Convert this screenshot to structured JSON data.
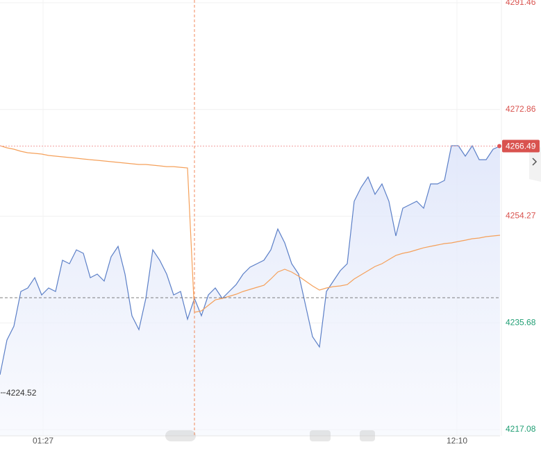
{
  "chart_data": {
    "type": "line",
    "x": [
      0,
      1,
      2,
      3,
      4,
      5,
      6,
      7,
      8,
      9,
      10,
      11,
      12,
      13,
      14,
      15,
      16,
      17,
      18,
      19,
      20,
      21,
      22,
      23,
      24,
      25,
      26,
      27,
      28,
      29,
      30,
      31,
      32,
      33,
      34,
      35,
      36,
      37,
      38,
      39,
      40,
      41,
      42,
      43,
      44,
      45,
      46,
      47,
      48,
      49,
      50,
      51,
      52,
      53,
      54,
      55,
      56,
      57,
      58,
      59,
      60,
      61,
      62,
      63,
      64,
      65,
      66,
      67,
      68,
      69,
      70,
      71,
      72
    ],
    "xlim": [
      0,
      72
    ],
    "xticks": [
      {
        "value": 6.2,
        "label": "01:27"
      },
      {
        "value": 65.8,
        "label": "12:10"
      }
    ],
    "ylim": [
      4217.08,
      4291.46
    ],
    "yticks": [
      4217.08,
      4235.68,
      4254.27,
      4272.86,
      4291.46
    ],
    "grid": true,
    "ref_line": 4240.06,
    "cursor_x": 28,
    "annotation": "4224.52",
    "series": [
      {
        "color": "#5b7fc7",
        "area": true,
        "values": [
          4226.63,
          4232.68,
          4235.1,
          4241.15,
          4241.75,
          4243.56,
          4240.54,
          4241.75,
          4241.15,
          4246.59,
          4245.98,
          4248.4,
          4247.8,
          4243.56,
          4244.17,
          4242.96,
          4247.19,
          4249.01,
          4244.17,
          4236.91,
          4234.49,
          4239.94,
          4248.4,
          4246.59,
          4244.17,
          4240.54,
          4241.15,
          4236.31,
          4239.94,
          4236.91,
          4240.54,
          4241.75,
          4239.94,
          4241.15,
          4242.35,
          4244.17,
          4245.38,
          4245.98,
          4246.59,
          4248.4,
          4252.03,
          4249.61,
          4245.98,
          4244.17,
          4238.73,
          4233.28,
          4231.47,
          4241.15,
          4242.96,
          4244.77,
          4245.98,
          4256.87,
          4259.29,
          4261.1,
          4258.08,
          4259.89,
          4256.87,
          4250.82,
          4255.66,
          4256.26,
          4256.87,
          4255.66,
          4259.89,
          4259.89,
          4260.5,
          4266.54,
          4266.54,
          4264.73,
          4266.54,
          4264.12,
          4264.12,
          4265.94,
          4266.49
        ]
      },
      {
        "color": "#f5a05a",
        "area": false,
        "values": [
          4266.54,
          4266.18,
          4265.94,
          4265.58,
          4265.33,
          4265.21,
          4265.09,
          4264.85,
          4264.73,
          4264.61,
          4264.49,
          4264.37,
          4264.24,
          4264.12,
          4264.0,
          4263.88,
          4263.76,
          4263.64,
          4263.52,
          4263.4,
          4263.28,
          4263.28,
          4263.16,
          4263.04,
          4262.91,
          4262.91,
          4262.79,
          4262.67,
          4237.52,
          4237.76,
          4238.73,
          4239.69,
          4239.94,
          4240.3,
          4240.66,
          4241.15,
          4241.51,
          4241.87,
          4242.23,
          4243.32,
          4244.53,
          4245.02,
          4244.53,
          4243.81,
          4242.96,
          4242.11,
          4241.39,
          4241.75,
          4241.99,
          4242.11,
          4242.35,
          4243.32,
          4244.05,
          4244.77,
          4245.5,
          4245.98,
          4246.71,
          4247.43,
          4247.8,
          4248.04,
          4248.4,
          4248.76,
          4249.01,
          4249.25,
          4249.49,
          4249.61,
          4249.85,
          4250.09,
          4250.34,
          4250.46,
          4250.7,
          4250.82,
          4250.94
        ]
      }
    ]
  }
}
